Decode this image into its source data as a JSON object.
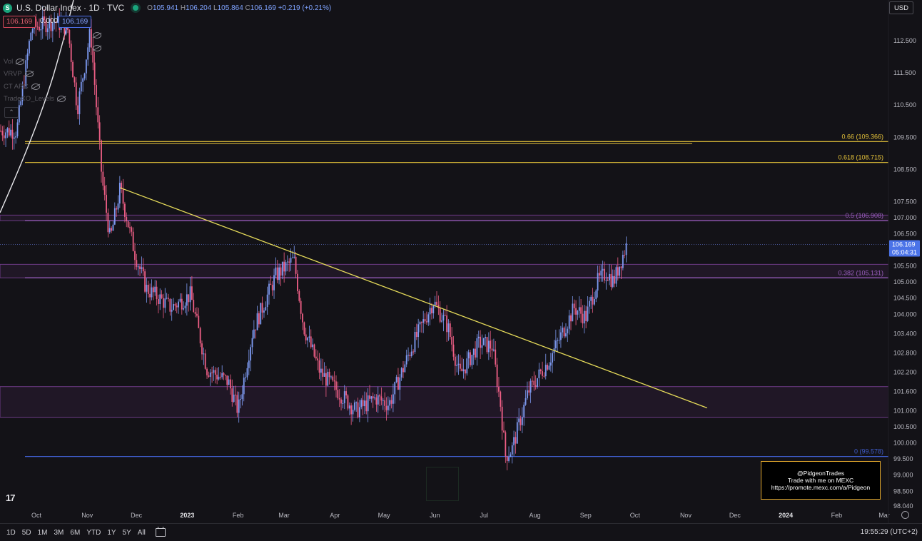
{
  "header": {
    "symbol_icon": "S",
    "title": "U.S. Dollar Index · 1D · TVC",
    "o_label": "O",
    "o_value": "105.941",
    "h_label": "H",
    "h_value": "106.204",
    "l_label": "L",
    "l_value": "105.864",
    "c_label": "C",
    "c_value": "106.169",
    "change": "+0.219 (+0.21%)"
  },
  "price_boxes": {
    "bid": "106.169",
    "spread": "0.000",
    "ask": "106.169"
  },
  "indicators": [
    {
      "label": "Vol",
      "icon": "eye-hidden-icon"
    },
    {
      "label": "VRVP",
      "icon": "eye-hidden-icon"
    },
    {
      "label": "CT ARC",
      "icon": "eye-hidden-icon"
    },
    {
      "label": "TradeXO_Levels",
      "icon": "eye-hidden-icon"
    }
  ],
  "currency": "USD",
  "logo_text": "17",
  "promo": {
    "handle": "@PidgeonTrades",
    "line2": "Trade with me on MEXC",
    "url": "https://promote.mexc.com/a/Pidgeon"
  },
  "bottom_bar": {
    "timeframes": [
      "1D",
      "5D",
      "1M",
      "3M",
      "6M",
      "YTD",
      "1Y",
      "5Y",
      "All"
    ],
    "clock": "19:55:29 (UTC+2)"
  },
  "chart_data": {
    "type": "candlestick",
    "y_axis_labels": [
      "112.500",
      "111.500",
      "110.500",
      "109.500",
      "108.500",
      "107.500",
      "107.000",
      "106.500",
      "105.500",
      "105.000",
      "104.500",
      "104.000",
      "103.400",
      "102.800",
      "102.200",
      "101.600",
      "101.000",
      "100.500",
      "100.000",
      "99.500",
      "99.000",
      "98.500",
      "98.040"
    ],
    "ylim": [
      98.04,
      113.2
    ],
    "x_axis_labels": [
      "Oct",
      "Nov",
      "Dec",
      "2023",
      "Feb",
      "Mar",
      "Apr",
      "May",
      "Jun",
      "Jul",
      "Aug",
      "Sep",
      "Oct",
      "Nov",
      "Dec",
      "2024",
      "Feb",
      "Mar"
    ],
    "last_price": "106.169",
    "countdown": "05:04:31",
    "fib_levels": [
      {
        "label": "0.66 (109.366)",
        "value": 109.366,
        "color": "#e7c43a"
      },
      {
        "label": "0.618 (108.715)",
        "value": 108.715,
        "color": "#e7c43a"
      },
      {
        "label": "0.5 (106.908)",
        "value": 106.908,
        "color": "#9b5fc0"
      },
      {
        "label": "0.382 (105.131)",
        "value": 105.131,
        "color": "#9b5fc0"
      },
      {
        "label": "0 (99.578)",
        "value": 99.578,
        "color": "#3f5cc9"
      }
    ],
    "zones": [
      {
        "from": 106.908,
        "to": 107.08
      },
      {
        "from": 105.131,
        "to": 105.55
      },
      {
        "from": 100.8,
        "to": 101.75
      }
    ],
    "trendline": {
      "from": [
        "Nov 21 2022",
        107.93
      ],
      "to": [
        "Nov 14 2023",
        101.09
      ],
      "color": "#e7dc5a"
    },
    "price_path": [
      [
        "Sep 19 2022",
        109.7
      ],
      [
        "Sep 28 2022",
        112.9
      ],
      [
        "Oct 12 2022",
        113.1
      ],
      [
        "Oct 20 2022",
        112.9
      ],
      [
        "Oct 26 2022",
        110.4
      ],
      [
        "Nov 3 2022",
        112.8
      ],
      [
        "Nov 10 2022",
        108.2
      ],
      [
        "Nov 15 2022",
        106.3
      ],
      [
        "Nov 21 2022",
        107.9
      ],
      [
        "Nov 30 2022",
        105.9
      ],
      [
        "Dec 7 2022",
        104.8
      ],
      [
        "Dec 15 2022",
        104.5
      ],
      [
        "Dec 22 2022",
        104.2
      ],
      [
        "Jan 3 2023",
        104.6
      ],
      [
        "Jan 13 2023",
        102.3
      ],
      [
        "Jan 26 2023",
        101.9
      ],
      [
        "Feb 1 2023",
        101.0
      ],
      [
        "Feb 10 2023",
        103.5
      ],
      [
        "Feb 24 2023",
        105.2
      ],
      [
        "Mar 7 2023",
        105.7
      ],
      [
        "Mar 13 2023",
        103.6
      ],
      [
        "Mar 23 2023",
        102.2
      ],
      [
        "Apr 3 2023",
        101.6
      ],
      [
        "Apr 14 2023",
        101.0
      ],
      [
        "Apr 26 2023",
        101.4
      ],
      [
        "May 4 2023",
        101.2
      ],
      [
        "May 18 2023",
        103.0
      ],
      [
        "May 31 2023",
        104.4
      ],
      [
        "Jun 9 2023",
        103.6
      ],
      [
        "Jun 16 2023",
        102.1
      ],
      [
        "Jun 28 2023",
        103.1
      ],
      [
        "Jul 6 2023",
        103.0
      ],
      [
        "Jul 11 2023",
        101.2
      ],
      [
        "Jul 14 2023",
        99.6
      ],
      [
        "Jul 18 2023",
        99.8
      ],
      [
        "Jul 28 2023",
        101.6
      ],
      [
        "Aug 10 2023",
        102.6
      ],
      [
        "Aug 25 2023",
        104.2
      ],
      [
        "Sep 1 2023",
        103.9
      ],
      [
        "Sep 8 2023",
        105.0
      ],
      [
        "Sep 14 2023",
        105.3
      ],
      [
        "Sep 18 2023",
        105.0
      ],
      [
        "Sep 22 2023",
        105.6
      ],
      [
        "Sep 26 2023",
        106.17
      ]
    ]
  }
}
